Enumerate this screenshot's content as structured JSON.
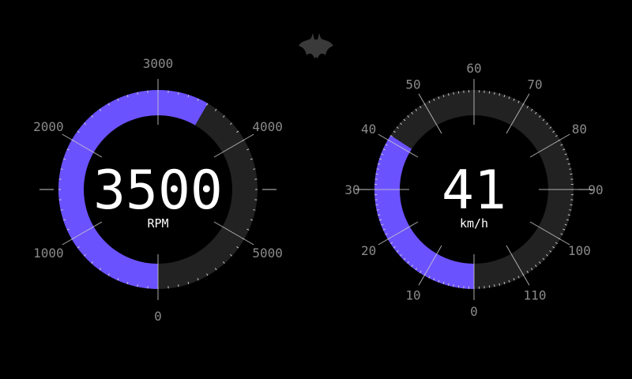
{
  "theme": {
    "accent": "#6b52ff",
    "track": "#222222",
    "tick": "#c8c8c8",
    "label": "#8a8a8a",
    "background": "#000000"
  },
  "logo": {
    "icon": "bat-icon"
  },
  "gauges": [
    {
      "id": "rpm",
      "value": 3500,
      "display": "3500",
      "unit": "RPM",
      "min": 0,
      "max": 6000,
      "ticks": [
        "0",
        "1000",
        "2000",
        "3000",
        "4000",
        "5000"
      ]
    },
    {
      "id": "speed",
      "value": 41,
      "display": "41",
      "unit": "km/h",
      "min": 0,
      "max": 120,
      "ticks": [
        "0",
        "10",
        "20",
        "30",
        "40",
        "50",
        "60",
        "70",
        "80",
        "90",
        "100",
        "110"
      ]
    }
  ]
}
